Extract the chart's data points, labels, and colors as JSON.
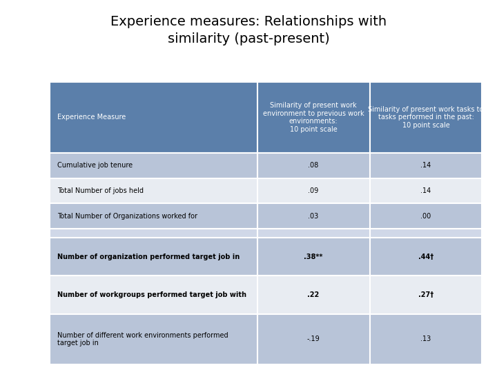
{
  "title_line1": "Experience measures: Relationships with",
  "title_line2": "similarity (past-present)",
  "col_headers": [
    "Experience Measure",
    "Similarity of present work\nenvironment to previous work\nenvironments:\n10 point scale",
    "Similarity of present work tasks to\ntasks performed in the past:\n10 point scale"
  ],
  "rows": [
    [
      "Cumulative job tenure",
      ".08",
      ".14"
    ],
    [
      "Total Number of jobs held",
      ".09",
      ".14"
    ],
    [
      "Total Number of Organizations worked for",
      ".03",
      ".00"
    ],
    [
      "",
      "",
      ""
    ],
    [
      "Number of organization performed target job in",
      ".38**",
      ".44†"
    ],
    [
      "Number of workgroups performed target job with",
      ".22",
      ".27†"
    ],
    [
      "Number of different work environments performed\ntarget job in",
      "-.19",
      ".13"
    ]
  ],
  "header_bg": "#5b7faa",
  "header_text": "#ffffff",
  "row_bg_dark": "#b8c4d8",
  "row_bg_light": "#e8ecf2",
  "separator_bg": "#d0d8e8",
  "bold_rows": [
    4,
    5
  ],
  "bg_color": "#ffffff",
  "title_fontsize": 14,
  "cell_fontsize": 7,
  "header_fontsize": 7
}
